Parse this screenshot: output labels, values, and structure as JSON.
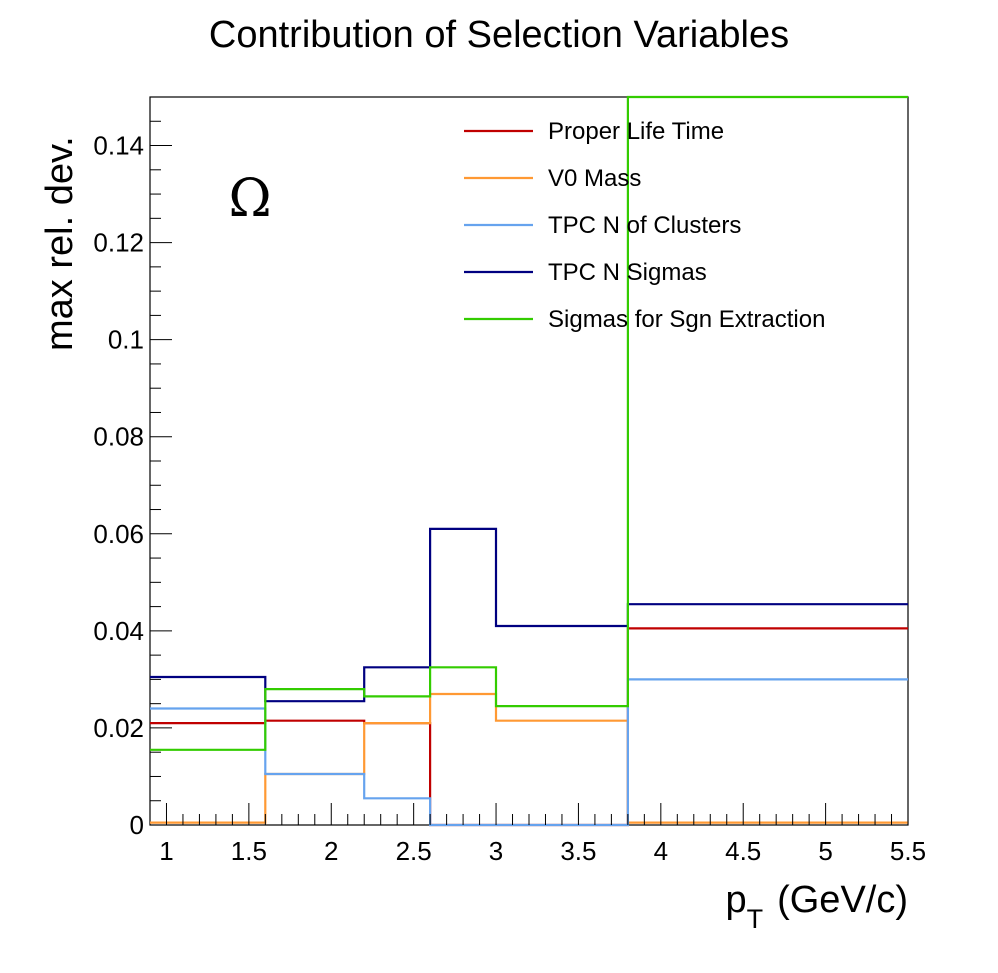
{
  "chart_data": {
    "type": "line",
    "style": "step-histogram",
    "title": "Contribution of Selection Variables",
    "xlabel": "(GeV/c)",
    "xlabel_symbol": "p",
    "xlabel_subscript": "T",
    "ylabel": "max rel. dev.",
    "annotation": "Ω",
    "xlim": [
      0.9,
      5.5
    ],
    "ylim": [
      0,
      0.15
    ],
    "x_ticks": [
      1,
      1.5,
      2,
      2.5,
      3,
      3.5,
      4,
      4.5,
      5,
      5.5
    ],
    "x_tick_labels": [
      "1",
      "1.5",
      "2",
      "2.5",
      "3",
      "3.5",
      "4",
      "4.5",
      "5",
      "5.5"
    ],
    "y_ticks": [
      0,
      0.02,
      0.04,
      0.06,
      0.08,
      0.1,
      0.12,
      0.14
    ],
    "y_tick_labels": [
      "0",
      "0.02",
      "0.04",
      "0.06",
      "0.08",
      "0.1",
      "0.12",
      "0.14"
    ],
    "bin_edges": [
      0.9,
      1.6,
      2.2,
      2.6,
      3.0,
      3.8,
      5.5
    ],
    "legend_position": "top-right",
    "grid": false,
    "series": [
      {
        "name": "Proper Life Time",
        "color": "#c00000",
        "values": [
          0.021,
          0.0215,
          0.021,
          0.0,
          0.0,
          0.0405
        ]
      },
      {
        "name": "V0 Mass",
        "color": "#ff9933",
        "values": [
          0.0005,
          0.0105,
          0.021,
          0.027,
          0.0215,
          0.0005
        ]
      },
      {
        "name": "TPC N of Clusters",
        "color": "#66a3ee",
        "values": [
          0.024,
          0.0105,
          0.0055,
          0.0,
          0.0,
          0.03
        ]
      },
      {
        "name": "TPC N Sigmas",
        "color": "#000080",
        "values": [
          0.0305,
          0.0255,
          0.0325,
          0.061,
          0.041,
          0.0455
        ]
      },
      {
        "name": "Sigmas for Sgn Extraction",
        "color": "#33cc00",
        "values": [
          0.0155,
          0.028,
          0.0265,
          0.0325,
          0.0245,
          0.15
        ]
      }
    ]
  }
}
